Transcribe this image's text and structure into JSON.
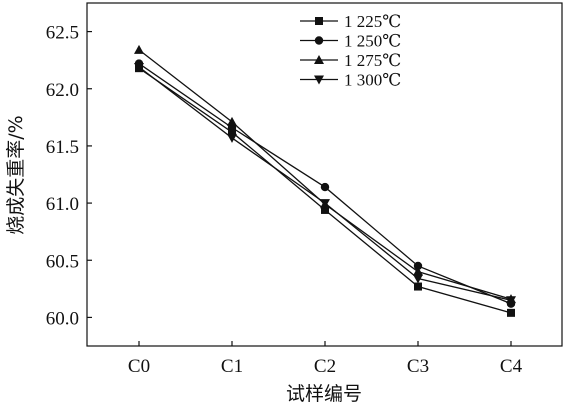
{
  "chart_data": {
    "type": "line",
    "categories": [
      "C0",
      "C1",
      "C2",
      "C3",
      "C4"
    ],
    "series": [
      {
        "name": "1 225℃",
        "marker": "square",
        "values": [
          62.18,
          61.62,
          60.94,
          60.27,
          60.04
        ]
      },
      {
        "name": "1 250℃",
        "marker": "circle",
        "values": [
          62.22,
          61.66,
          61.14,
          60.45,
          60.12
        ]
      },
      {
        "name": "1 275℃",
        "marker": "triangle-up",
        "values": [
          62.34,
          61.71,
          60.99,
          60.4,
          60.16
        ]
      },
      {
        "name": "1 300℃",
        "marker": "triangle-down",
        "values": [
          62.19,
          61.57,
          61.0,
          60.34,
          60.15
        ]
      }
    ],
    "xlabel": "试样编号",
    "ylabel": "烧成失重率/%",
    "ylim": [
      59.75,
      62.75
    ],
    "yticks": [
      "60.0",
      "60.5",
      "61.0",
      "61.5",
      "62.0",
      "62.5"
    ],
    "legend_position": "top-right",
    "grid": false,
    "line_color": "#111111"
  }
}
